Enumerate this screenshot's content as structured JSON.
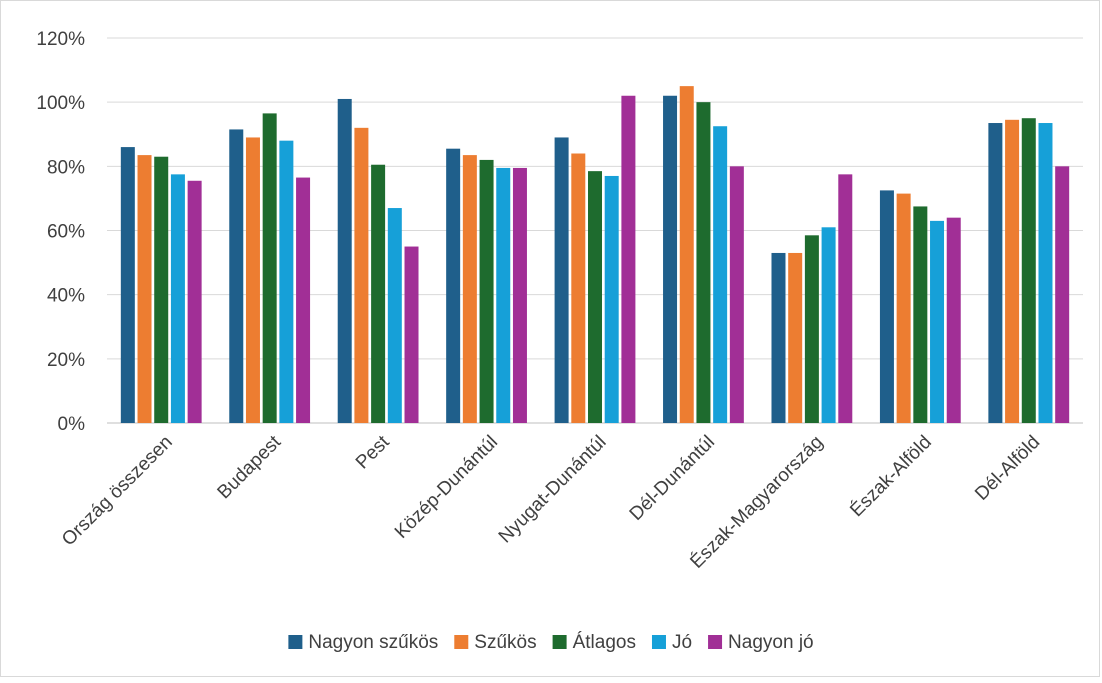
{
  "chart_data": {
    "type": "bar",
    "title": "",
    "xlabel": "",
    "ylabel": "",
    "ylim": [
      0,
      120
    ],
    "y_ticks": [
      "0%",
      "20%",
      "40%",
      "60%",
      "80%",
      "100%",
      "120%"
    ],
    "y_tick_values": [
      0,
      20,
      40,
      60,
      80,
      100,
      120
    ],
    "grid": true,
    "legend_position": "bottom",
    "categories": [
      "Ország összesen",
      "Budapest",
      "Pest",
      "Közép-Dunántúl",
      "Nyugat-Dunántúl",
      "Dél-Dunántúl",
      "Észak-Magyarország",
      "Észak-Alföld",
      "Dél-Alföld"
    ],
    "series": [
      {
        "name": "Nagyon szűkös",
        "color": "#1f5f8b",
        "values": [
          86,
          91.5,
          101,
          85.5,
          89,
          102,
          53,
          72.5,
          93.5
        ]
      },
      {
        "name": "Szűkös",
        "color": "#ed7d31",
        "values": [
          83.5,
          89,
          92,
          83.5,
          84,
          105,
          53,
          71.5,
          94.5
        ]
      },
      {
        "name": "Átlagos",
        "color": "#1e6b2e",
        "values": [
          83,
          96.5,
          80.5,
          82,
          78.5,
          100,
          58.5,
          67.5,
          95
        ]
      },
      {
        "name": "Jó",
        "color": "#16a0d8",
        "values": [
          77.5,
          88,
          67,
          79.5,
          77,
          92.5,
          61,
          63,
          93.5
        ]
      },
      {
        "name": "Nagyon jó",
        "color": "#a12f96",
        "values": [
          75.5,
          76.5,
          55,
          79.5,
          102,
          80,
          77.5,
          64,
          80
        ]
      }
    ]
  }
}
